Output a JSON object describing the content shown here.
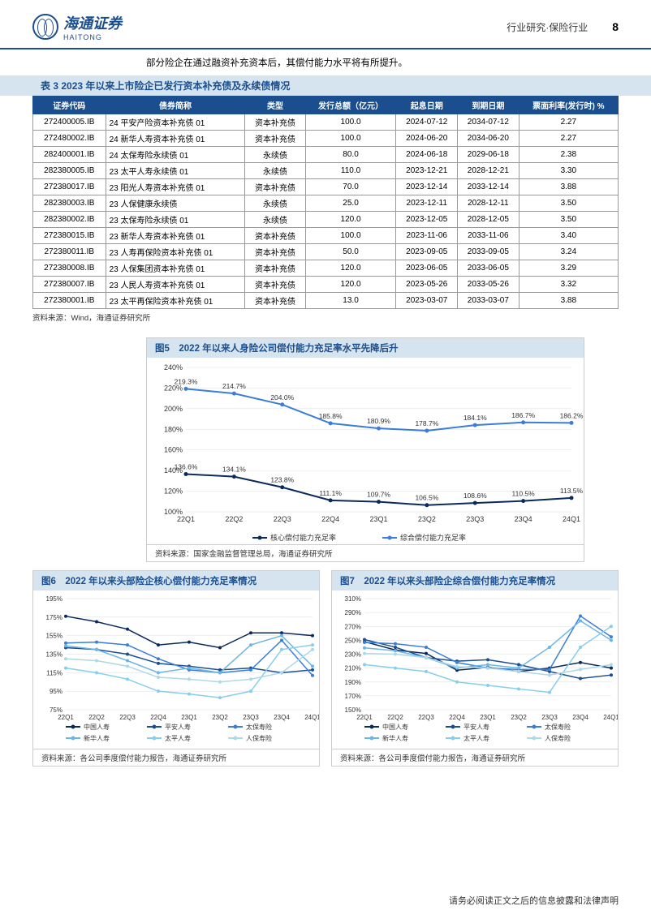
{
  "header": {
    "logo_cn": "海通证券",
    "logo_en": "HAITONG",
    "category": "行业研究·保险行业",
    "page_number": "8"
  },
  "intro_text": "部分险企在通过融资补充资本后，其偿付能力水平将有所提升。",
  "table3": {
    "title": "表 3 2023 年以来上市险企已发行资本补充债及永续债情况",
    "columns": [
      "证券代码",
      "债券简称",
      "类型",
      "发行总额（亿元）",
      "起息日期",
      "到期日期",
      "票面利率(发行时) %"
    ],
    "rows": [
      [
        "272400005.IB",
        "24 平安产险资本补充债 01",
        "资本补充债",
        "100.0",
        "2024-07-12",
        "2034-07-12",
        "2.27"
      ],
      [
        "272480002.IB",
        "24 新华人寿资本补充债 01",
        "资本补充债",
        "100.0",
        "2024-06-20",
        "2034-06-20",
        "2.27"
      ],
      [
        "282400001.IB",
        "24 太保寿险永续债 01",
        "永续债",
        "80.0",
        "2024-06-18",
        "2029-06-18",
        "2.38"
      ],
      [
        "282380005.IB",
        "23 太平人寿永续债 01",
        "永续债",
        "110.0",
        "2023-12-21",
        "2028-12-21",
        "3.30"
      ],
      [
        "272380017.IB",
        "23 阳光人寿资本补充债 01",
        "资本补充债",
        "70.0",
        "2023-12-14",
        "2033-12-14",
        "3.88"
      ],
      [
        "282380003.IB",
        "23 人保健康永续债",
        "永续债",
        "25.0",
        "2023-12-11",
        "2028-12-11",
        "3.50"
      ],
      [
        "282380002.IB",
        "23 太保寿险永续债 01",
        "永续债",
        "120.0",
        "2023-12-05",
        "2028-12-05",
        "3.50"
      ],
      [
        "272380015.IB",
        "23 新华人寿资本补充债 01",
        "资本补充债",
        "100.0",
        "2023-11-06",
        "2033-11-06",
        "3.40"
      ],
      [
        "272380011.IB",
        "23 人寿再保险资本补充债 01",
        "资本补充债",
        "50.0",
        "2023-09-05",
        "2033-09-05",
        "3.24"
      ],
      [
        "272380008.IB",
        "23 人保集团资本补充债 01",
        "资本补充债",
        "120.0",
        "2023-06-05",
        "2033-06-05",
        "3.29"
      ],
      [
        "272380007.IB",
        "23 人民人寿资本补充债 01",
        "资本补充债",
        "120.0",
        "2023-05-26",
        "2033-05-26",
        "3.32"
      ],
      [
        "272380001.IB",
        "23 太平再保险资本补充债 01",
        "资本补充债",
        "13.0",
        "2023-03-07",
        "2033-03-07",
        "3.88"
      ]
    ],
    "source": "资料来源：Wind，海通证券研究所"
  },
  "chart5": {
    "title": "图5　2022 年以来人身险公司偿付能力充足率水平先降后升",
    "type": "line",
    "categories": [
      "22Q1",
      "22Q2",
      "22Q3",
      "22Q4",
      "23Q1",
      "23Q2",
      "23Q3",
      "23Q4",
      "24Q1"
    ],
    "series": [
      {
        "name": "核心偿付能力充足率",
        "color": "#0a2a5c",
        "values": [
          136.6,
          134.1,
          123.8,
          111.1,
          109.7,
          106.5,
          108.6,
          110.5,
          113.5
        ]
      },
      {
        "name": "综合偿付能力充足率",
        "color": "#3b7dd8",
        "values": [
          219.3,
          214.7,
          204.0,
          185.8,
          180.9,
          178.7,
          184.1,
          186.7,
          186.2
        ]
      }
    ],
    "ylim": [
      100,
      240
    ],
    "ytick_step": 20,
    "yticks": [
      100,
      120,
      140,
      160,
      180,
      200,
      220,
      240
    ],
    "background_color": "#ffffff",
    "grid_color": "#dddddd",
    "label_fontsize": 9,
    "source": "资料来源：国家金融监督管理总局，海通证券研究所"
  },
  "chart6": {
    "title": "图6　2022 年以来头部险企核心偿付能力充足率情况",
    "type": "line",
    "categories": [
      "22Q1",
      "22Q2",
      "22Q3",
      "22Q4",
      "23Q1",
      "23Q2",
      "23Q3",
      "23Q4",
      "24Q1"
    ],
    "series": [
      {
        "name": "中国人寿",
        "color": "#0a2a5c",
        "values": [
          176,
          170,
          162,
          145,
          148,
          142,
          158,
          158,
          155
        ]
      },
      {
        "name": "平安人寿",
        "color": "#1a4e8e",
        "values": [
          142,
          140,
          135,
          125,
          122,
          118,
          120,
          115,
          118
        ]
      },
      {
        "name": "太保寿险",
        "color": "#3b7dd8",
        "values": [
          147,
          148,
          145,
          130,
          118,
          115,
          118,
          150,
          112
        ]
      },
      {
        "name": "新华人寿",
        "color": "#6bb6e8",
        "values": [
          144,
          140,
          128,
          115,
          120,
          115,
          145,
          155,
          122
        ]
      },
      {
        "name": "太平人寿",
        "color": "#87ceeb",
        "values": [
          120,
          115,
          108,
          95,
          92,
          88,
          95,
          140,
          145
        ]
      },
      {
        "name": "人保寿险",
        "color": "#add8e6",
        "values": [
          130,
          128,
          122,
          110,
          108,
          105,
          108,
          115,
          140
        ]
      }
    ],
    "ylim": [
      75,
      195
    ],
    "ytick_step": 20,
    "yticks": [
      75,
      95,
      115,
      135,
      155,
      175,
      195
    ],
    "background_color": "#ffffff",
    "grid_color": "#dddddd",
    "source": "资料来源：各公司季度偿付能力报告，海通证券研究所"
  },
  "chart7": {
    "title": "图7　2022 年以来头部险企综合偿付能力充足率情况",
    "type": "line",
    "categories": [
      "22Q1",
      "22Q2",
      "22Q3",
      "22Q4",
      "23Q1",
      "23Q2",
      "23Q3",
      "23Q4",
      "24Q1"
    ],
    "series": [
      {
        "name": "中国人寿",
        "color": "#0a2a5c",
        "values": [
          248,
          236,
          231,
          207,
          211,
          205,
          210,
          218,
          210
        ]
      },
      {
        "name": "平安人寿",
        "color": "#1a4e8e",
        "values": [
          251,
          240,
          225,
          220,
          222,
          215,
          205,
          195,
          200
        ]
      },
      {
        "name": "太保寿险",
        "color": "#3b7dd8",
        "values": [
          247,
          245,
          240,
          218,
          210,
          208,
          208,
          285,
          255
        ]
      },
      {
        "name": "新华人寿",
        "color": "#6bb6e8",
        "values": [
          239,
          235,
          225,
          210,
          215,
          210,
          240,
          278,
          250
        ]
      },
      {
        "name": "太平人寿",
        "color": "#87ceeb",
        "values": [
          215,
          210,
          205,
          190,
          185,
          180,
          175,
          240,
          270
        ]
      },
      {
        "name": "人保寿险",
        "color": "#add8e6",
        "values": [
          231,
          230,
          225,
          212,
          210,
          205,
          200,
          208,
          215
        ]
      }
    ],
    "ylim": [
      150,
      310
    ],
    "ytick_step": 20,
    "yticks": [
      150,
      170,
      190,
      210,
      230,
      250,
      270,
      290,
      310
    ],
    "background_color": "#ffffff",
    "grid_color": "#dddddd",
    "source": "资料来源：各公司季度偿付能力报告，海通证券研究所"
  },
  "footer_text": "请务必阅读正文之后的信息披露和法律声明",
  "colors": {
    "brand": "#1a4e8e",
    "title_bg": "#d6e4f0"
  }
}
